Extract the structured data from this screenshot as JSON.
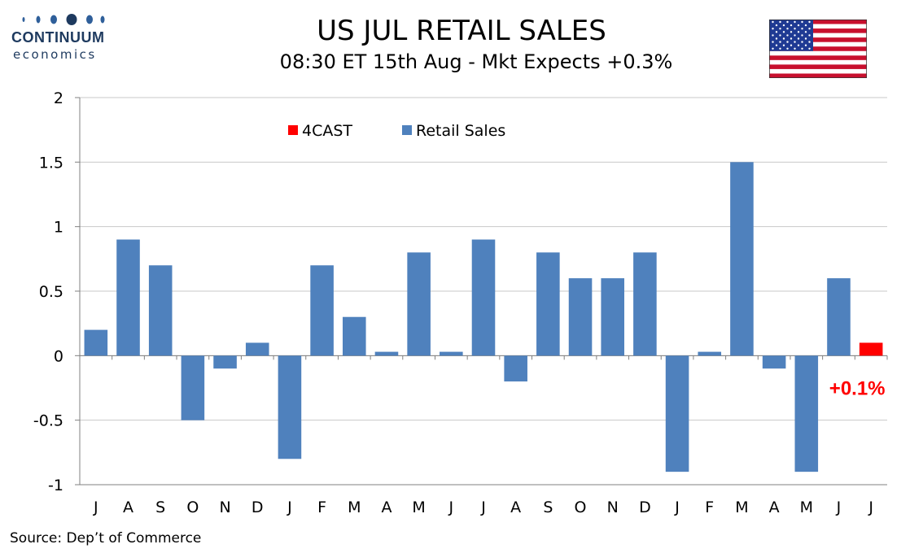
{
  "logo": {
    "name": "CONTINUUM",
    "sub": "economics",
    "color": "#1e3a5f"
  },
  "header": {
    "title": "US JUL RETAIL SALES",
    "subtitle": "08:30 ET 15th Aug - Mkt Expects +0.3%"
  },
  "flag": {
    "icon": "us-flag-icon"
  },
  "footer": {
    "source": "Source: Dep’t of Commerce"
  },
  "chart_data": {
    "type": "bar",
    "categories": [
      "J",
      "A",
      "S",
      "O",
      "N",
      "D",
      "J",
      "F",
      "M",
      "A",
      "M",
      "J",
      "J",
      "A",
      "S",
      "O",
      "N",
      "D",
      "J",
      "F",
      "M",
      "A",
      "M",
      "J",
      "J"
    ],
    "series": [
      {
        "name": "Retail Sales",
        "color": "#4f81bd",
        "values": [
          0.2,
          0.9,
          0.7,
          -0.5,
          -0.1,
          0.1,
          -0.8,
          0.7,
          0.3,
          0.03,
          0.8,
          0.03,
          0.9,
          -0.2,
          0.8,
          0.6,
          0.6,
          0.8,
          -0.9,
          0.03,
          1.5,
          -0.1,
          -0.9,
          0.6,
          null
        ]
      },
      {
        "name": "4CAST",
        "color": "#ff0000",
        "values": [
          null,
          null,
          null,
          null,
          null,
          null,
          null,
          null,
          null,
          null,
          null,
          null,
          null,
          null,
          null,
          null,
          null,
          null,
          null,
          null,
          null,
          null,
          null,
          null,
          0.1
        ]
      }
    ],
    "legend_order": [
      "4CAST",
      "Retail Sales"
    ],
    "legend_placement": "top-center",
    "ylim": [
      -1,
      2
    ],
    "yticks": [
      "2",
      "1.5",
      "1",
      "0.5",
      "0",
      "-0.5",
      "-1"
    ],
    "ytick_values": [
      2,
      1.5,
      1,
      0.5,
      0,
      -0.5,
      -1
    ],
    "grid": true,
    "annotation": {
      "text": "+0.1%",
      "color": "#ff0000"
    },
    "title": "US JUL RETAIL SALES",
    "xlabel": "",
    "ylabel": ""
  }
}
